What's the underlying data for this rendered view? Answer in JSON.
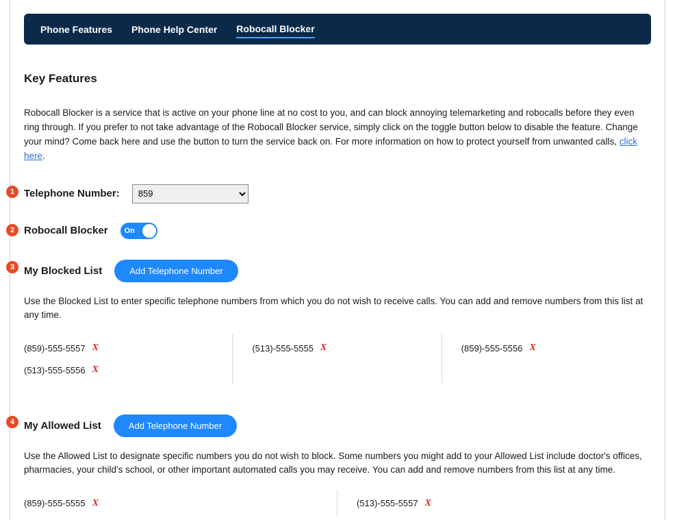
{
  "colors": {
    "navbar_bg": "#0b2a4a",
    "accent": "#1e88ff",
    "step_badge": "#e84a27",
    "delete_x": "#d9241c",
    "link": "#2a6fd6",
    "text": "#1a1a1a",
    "divider": "#d8d8d8",
    "page_bg": "#ffffff"
  },
  "nav": {
    "items": [
      {
        "label": "Phone Features",
        "active": false
      },
      {
        "label": "Phone Help Center",
        "active": false
      },
      {
        "label": "Robocall Blocker",
        "active": true
      }
    ]
  },
  "key_features": {
    "title": "Key Features",
    "description_1": "Robocall Blocker is a service that is active on your phone line at no cost to you, and can block annoying telemarketing and robocalls before they even ring through. If you prefer to not take advantage of the Robocall Blocker service, simply click on the toggle button below to disable the feature. Change your mind? Come back here and use the button to turn the service back on. For more information on how to protect yourself from unwanted calls, ",
    "link_text": "click here",
    "description_2": "."
  },
  "phone_number": {
    "step": "1",
    "label": "Telephone Number:",
    "selected_prefix": "859"
  },
  "blocker_toggle": {
    "step": "2",
    "label": "Robocall Blocker",
    "state_label": "On",
    "enabled": true
  },
  "blocked_list": {
    "step": "3",
    "title": "My Blocked List",
    "add_button": "Add Telephone Number",
    "description": "Use the Blocked List to enter specific telephone numbers from which you do not wish to receive calls. You can add and remove numbers from this list at any time.",
    "col1": [
      "(859)-555-5557",
      "(513)-555-5556"
    ],
    "col2": [
      "(513)-555-5555"
    ],
    "col3": [
      "(859)-555-5556"
    ]
  },
  "allowed_list": {
    "step": "4",
    "title": "My Allowed List",
    "add_button": "Add Telephone Number",
    "description": "Use the Allowed List to designate specific numbers you do not wish to block. Some numbers you might add to your Allowed List include doctor's offices, pharmacies, your child's school, or other important automated calls you may receive. You can add and remove numbers from this list at any time.",
    "col1": [
      "(859)-555-5555"
    ],
    "col2": [
      "(513)-555-5557"
    ]
  }
}
